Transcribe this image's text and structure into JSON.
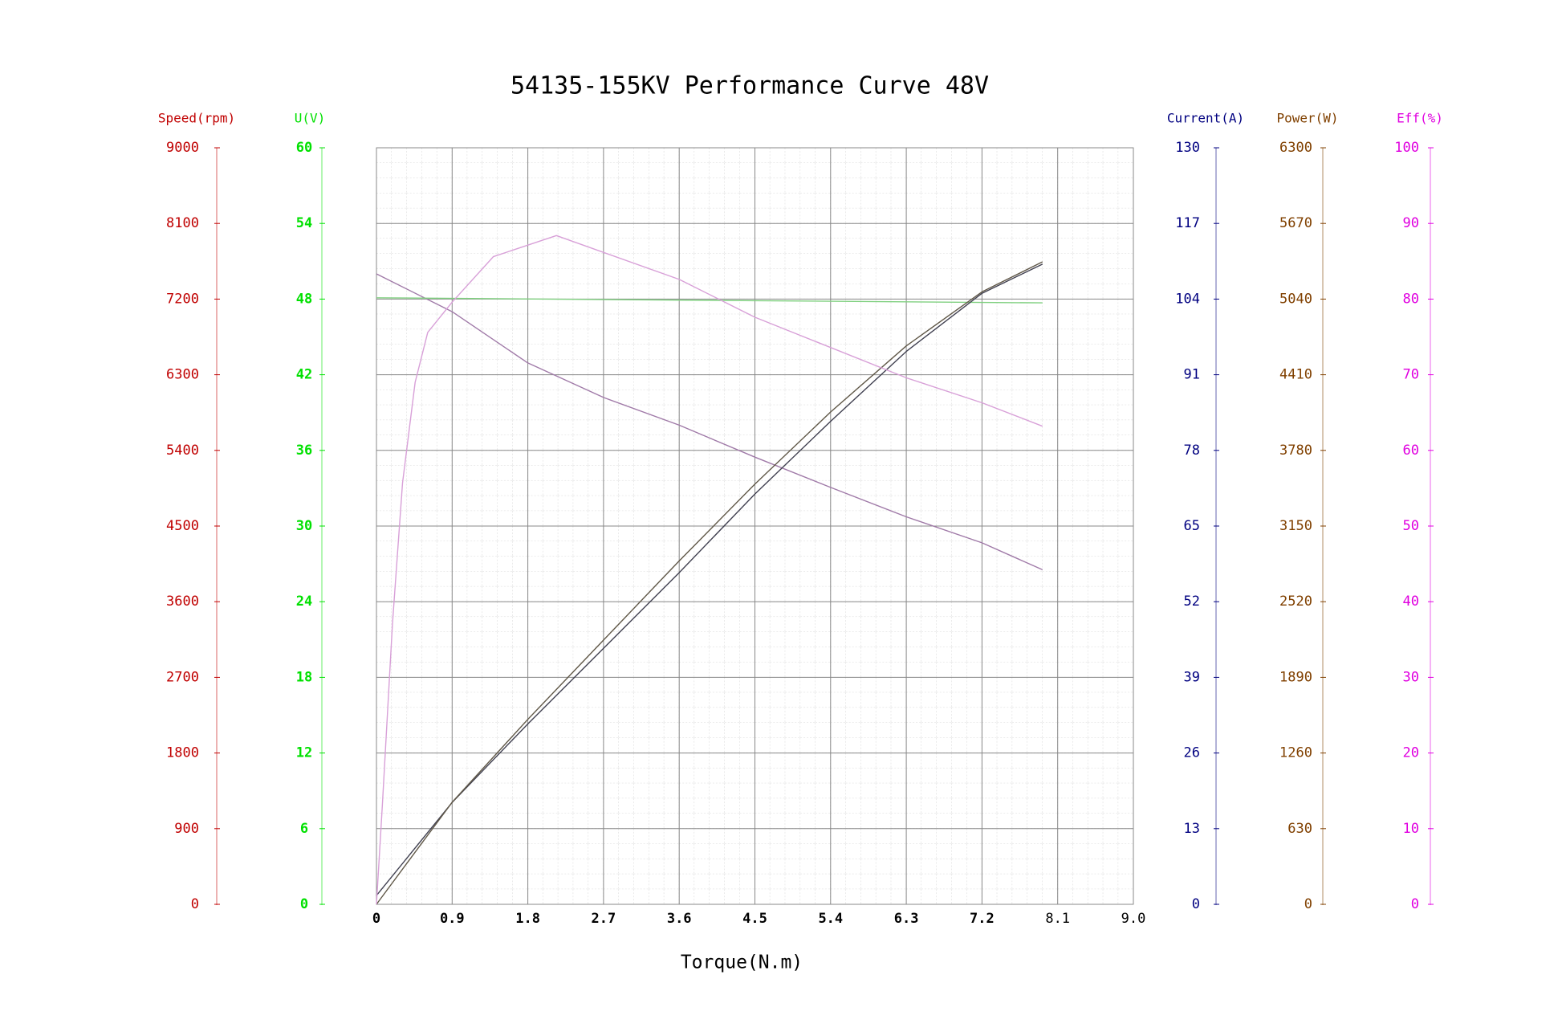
{
  "chart_data": {
    "type": "line",
    "title": "54135-155KV Performance Curve 48V",
    "xlabel": "Torque(N.m)",
    "xlim": [
      0,
      9
    ],
    "xticks": [
      0,
      0.9,
      1.8,
      2.7,
      3.6,
      4.5,
      5.4,
      6.3,
      7.2,
      8.1,
      {
        "value": 9,
        "label": "9.0"
      }
    ],
    "grid": true,
    "axes": [
      {
        "label": "Speed(rpm)",
        "color": "#c00000",
        "side": "left",
        "ylim": [
          0,
          9000
        ],
        "yticks": [
          0,
          900,
          1800,
          2700,
          3600,
          4500,
          5400,
          6300,
          7200,
          8100,
          9000
        ]
      },
      {
        "label": "U(V)",
        "color": "#00e000",
        "side": "left",
        "ylim": [
          0,
          60
        ],
        "yticks": [
          0,
          6,
          12,
          18,
          24,
          30,
          36,
          42,
          48,
          54,
          60
        ]
      },
      {
        "label": "Current(A)",
        "color": "#000080",
        "side": "right",
        "ylim": [
          0,
          130
        ],
        "yticks": [
          0,
          13,
          26,
          39,
          52,
          65,
          78,
          91,
          104,
          117,
          130
        ]
      },
      {
        "label": "Power(W)",
        "color": "#804000",
        "side": "right",
        "ylim": [
          0,
          6300
        ],
        "yticks": [
          0,
          630,
          1260,
          1890,
          2520,
          3150,
          3780,
          4410,
          5040,
          5670,
          6300
        ]
      },
      {
        "label": "Eff(%)",
        "color": "#e000e0",
        "side": "right",
        "ylim": [
          0,
          100
        ],
        "yticks": [
          0,
          10,
          20,
          30,
          40,
          50,
          60,
          70,
          80,
          90,
          100
        ]
      }
    ],
    "series": [
      {
        "axis": 0,
        "color": "#a07aa8",
        "x": [
          0,
          0.9,
          1.8,
          2.7,
          3.6,
          4.5,
          5.4,
          6.3,
          7.2,
          7.92
        ],
        "values": [
          7500,
          7050,
          6440,
          6030,
          5700,
          5320,
          4960,
          4610,
          4300,
          3980
        ]
      },
      {
        "axis": 1,
        "color": "#80d080",
        "x": [
          0,
          7.92
        ],
        "values": [
          48.1,
          47.7
        ]
      },
      {
        "axis": 2,
        "color": "#404050",
        "x": [
          0,
          0.9,
          1.8,
          2.7,
          3.6,
          4.5,
          5.4,
          6.3,
          7.2,
          7.92
        ],
        "values": [
          1.5,
          17.5,
          31,
          44,
          57,
          70.5,
          83,
          95,
          105,
          110
        ]
      },
      {
        "axis": 3,
        "color": "#605848",
        "x": [
          0,
          0.9,
          1.8,
          2.7,
          3.6,
          4.5,
          5.4,
          6.3,
          7.2,
          7.92
        ],
        "values": [
          0,
          850,
          1540,
          2200,
          2860,
          3500,
          4100,
          4650,
          5100,
          5350
        ]
      },
      {
        "axis": 4,
        "color": "#d8a0d8",
        "x": [
          0,
          0.07,
          0.19,
          0.31,
          0.46,
          0.61,
          0.9,
          1.39,
          2.14,
          3.6,
          4.5,
          5.4,
          6.3,
          7.2,
          7.92
        ],
        "values": [
          0,
          13,
          37,
          55.7,
          69,
          75.6,
          79.6,
          85.6,
          88.4,
          82.6,
          77.6,
          73.6,
          69.6,
          66.3,
          63.2
        ]
      }
    ]
  }
}
